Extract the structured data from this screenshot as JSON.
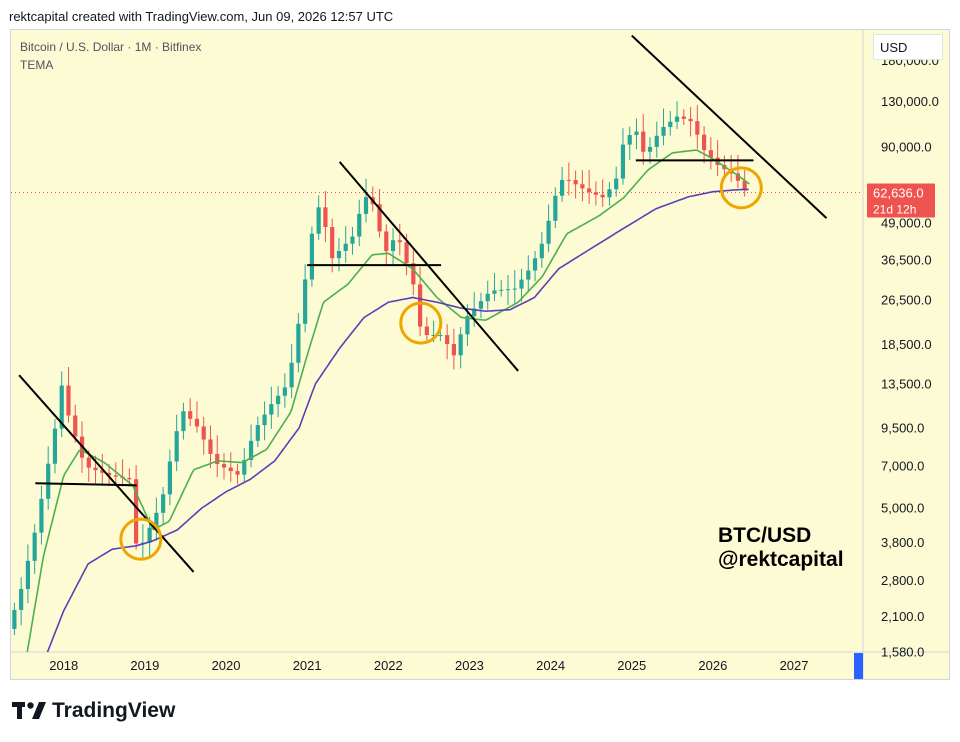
{
  "header": {
    "created_by": "rektcapital created with TradingView.com, Jun 09, 2026 12:57 UTC"
  },
  "toolbar": {
    "symbol": "Bitcoin / U.S. Dollar · 1M · Bitfinex",
    "indicator": "TEMA",
    "currency": "USD"
  },
  "watermark": {
    "line1": "BTC/USD",
    "line2": "@rektcapital"
  },
  "footer": {
    "brand": "TradingView"
  },
  "colors": {
    "bg": "#fdfbd4",
    "up": "#26a69a",
    "down": "#ef5350",
    "tema_fast": "#4caf50",
    "tema_slow": "#5b3fb8",
    "highlight": "#f0a500",
    "trendline": "#000000"
  },
  "chart_data": {
    "type": "candlestick",
    "y_scale": "log",
    "ylim": [
      1580,
      230000
    ],
    "xlim": [
      2017.35,
      2027.85
    ],
    "y_ticks": [
      "180,000.0",
      "130,000.0",
      "90,000.0",
      "62,636.0",
      "49,000.0",
      "36,500.0",
      "26,500.0",
      "18,500.0",
      "13,500.0",
      "9,500.0",
      "7,000.0",
      "5,000.0",
      "3,800.0",
      "2,800.0",
      "2,100.0",
      "1,580.0"
    ],
    "x_ticks": [
      "2018",
      "2019",
      "2020",
      "2021",
      "2022",
      "2023",
      "2024",
      "2025",
      "2026",
      "2027"
    ],
    "last_price": {
      "value": 62636,
      "label": "62,636.0",
      "countdown": "21d 12h"
    },
    "price_anchors": [
      [
        2017.35,
        1900
      ],
      [
        2017.5,
        2500
      ],
      [
        2017.7,
        4300
      ],
      [
        2017.95,
        10000
      ],
      [
        2018.0,
        14000
      ],
      [
        2018.1,
        10500
      ],
      [
        2018.3,
        7000
      ],
      [
        2018.6,
        6500
      ],
      [
        2018.85,
        6300
      ],
      [
        2018.9,
        3800
      ],
      [
        2019.0,
        3700
      ],
      [
        2019.25,
        5300
      ],
      [
        2019.4,
        8500
      ],
      [
        2019.5,
        11000
      ],
      [
        2019.7,
        9500
      ],
      [
        2019.9,
        7200
      ],
      [
        2020.2,
        6500
      ],
      [
        2020.4,
        9400
      ],
      [
        2020.6,
        11500
      ],
      [
        2020.8,
        13500
      ],
      [
        2020.9,
        19000
      ],
      [
        2021.0,
        29000
      ],
      [
        2021.1,
        45000
      ],
      [
        2021.2,
        58000
      ],
      [
        2021.35,
        37000
      ],
      [
        2021.6,
        44000
      ],
      [
        2021.75,
        61000
      ],
      [
        2021.85,
        57000
      ],
      [
        2022.0,
        38500
      ],
      [
        2022.15,
        45000
      ],
      [
        2022.35,
        30000
      ],
      [
        2022.45,
        20000
      ],
      [
        2022.7,
        20000
      ],
      [
        2022.85,
        17000
      ],
      [
        2023.0,
        23000
      ],
      [
        2023.3,
        28500
      ],
      [
        2023.6,
        29000
      ],
      [
        2023.8,
        34500
      ],
      [
        2023.95,
        42500
      ],
      [
        2024.1,
        61000
      ],
      [
        2024.2,
        71000
      ],
      [
        2024.5,
        63000
      ],
      [
        2024.7,
        60000
      ],
      [
        2024.85,
        70000
      ],
      [
        2024.95,
        97000
      ],
      [
        2025.1,
        102000
      ],
      [
        2025.2,
        84000
      ],
      [
        2025.4,
        104000
      ],
      [
        2025.6,
        115000
      ],
      [
        2025.8,
        110000
      ],
      [
        2025.9,
        90000
      ],
      [
        2026.1,
        78000
      ],
      [
        2026.3,
        72000
      ],
      [
        2026.45,
        62636
      ]
    ],
    "tema_fast_anchors": [
      [
        2017.55,
        1580
      ],
      [
        2017.75,
        3400
      ],
      [
        2018.0,
        6500
      ],
      [
        2018.2,
        8000
      ],
      [
        2018.5,
        7200
      ],
      [
        2018.85,
        6000
      ],
      [
        2019.1,
        4200
      ],
      [
        2019.3,
        4500
      ],
      [
        2019.6,
        6800
      ],
      [
        2019.9,
        7300
      ],
      [
        2020.2,
        7200
      ],
      [
        2020.5,
        8000
      ],
      [
        2020.8,
        10800
      ],
      [
        2021.0,
        17000
      ],
      [
        2021.2,
        26000
      ],
      [
        2021.5,
        30000
      ],
      [
        2021.8,
        38000
      ],
      [
        2022.0,
        38500
      ],
      [
        2022.3,
        34000
      ],
      [
        2022.6,
        27000
      ],
      [
        2022.9,
        23000
      ],
      [
        2023.2,
        22500
      ],
      [
        2023.6,
        26000
      ],
      [
        2023.9,
        32000
      ],
      [
        2024.2,
        45000
      ],
      [
        2024.6,
        52000
      ],
      [
        2024.9,
        60000
      ],
      [
        2025.2,
        75000
      ],
      [
        2025.5,
        86000
      ],
      [
        2025.8,
        88000
      ],
      [
        2026.0,
        82000
      ],
      [
        2026.3,
        72000
      ],
      [
        2026.45,
        67000
      ]
    ],
    "tema_slow_anchors": [
      [
        2017.8,
        1580
      ],
      [
        2018.0,
        2200
      ],
      [
        2018.3,
        3200
      ],
      [
        2018.6,
        3600
      ],
      [
        2018.9,
        3700
      ],
      [
        2019.1,
        3850
      ],
      [
        2019.4,
        4200
      ],
      [
        2019.7,
        5000
      ],
      [
        2020.0,
        5700
      ],
      [
        2020.3,
        6300
      ],
      [
        2020.6,
        7300
      ],
      [
        2020.9,
        9500
      ],
      [
        2021.1,
        13500
      ],
      [
        2021.4,
        18000
      ],
      [
        2021.7,
        23000
      ],
      [
        2022.0,
        26000
      ],
      [
        2022.3,
        27000
      ],
      [
        2022.6,
        26000
      ],
      [
        2022.9,
        24800
      ],
      [
        2023.2,
        24200
      ],
      [
        2023.5,
        24500
      ],
      [
        2023.8,
        27000
      ],
      [
        2024.1,
        34000
      ],
      [
        2024.5,
        40000
      ],
      [
        2024.9,
        47000
      ],
      [
        2025.3,
        55000
      ],
      [
        2025.7,
        60500
      ],
      [
        2026.0,
        63000
      ],
      [
        2026.3,
        64000
      ],
      [
        2026.45,
        64200
      ]
    ],
    "trendlines": [
      {
        "from": [
          2017.45,
          14500
        ],
        "to": [
          2019.6,
          3000
        ]
      },
      {
        "from": [
          2017.65,
          6100
        ],
        "to": [
          2018.9,
          6000
        ]
      },
      {
        "from": [
          2021.4,
          80000
        ],
        "to": [
          2023.6,
          15000
        ]
      },
      {
        "from": [
          2021.0,
          35000
        ],
        "to": [
          2022.65,
          35000
        ]
      },
      {
        "from": [
          2025.0,
          220000
        ],
        "to": [
          2027.4,
          51000
        ]
      },
      {
        "from": [
          2025.05,
          81000
        ],
        "to": [
          2026.5,
          81000
        ]
      }
    ],
    "highlights": [
      {
        "center": [
          2018.95,
          3900
        ]
      },
      {
        "center": [
          2022.4,
          22000
        ]
      },
      {
        "center": [
          2026.35,
          65000
        ]
      }
    ]
  }
}
